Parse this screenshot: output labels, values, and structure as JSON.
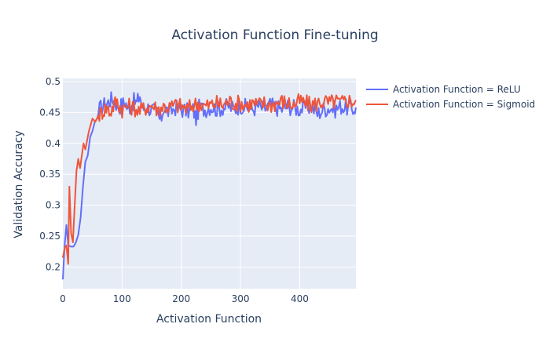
{
  "chart_data": {
    "type": "line",
    "title": "Activation Function Fine-tuning",
    "xlabel": "Activation Function",
    "ylabel": "Validation Accuracy",
    "xlim": [
      0,
      495
    ],
    "ylim": [
      0.165,
      0.505
    ],
    "xticks": [
      0,
      100,
      200,
      300,
      400
    ],
    "yticks": [
      0.2,
      0.25,
      0.3,
      0.35,
      0.4,
      0.45,
      0.5
    ],
    "grid": true,
    "legend_position": "top-right-outside",
    "series": [
      {
        "name": "Activation Function = ReLU",
        "color": "#636efa",
        "points": [
          [
            0,
            0.18
          ],
          [
            3,
            0.235
          ],
          [
            6,
            0.268
          ],
          [
            9,
            0.235
          ],
          [
            14,
            0.233
          ],
          [
            18,
            0.233
          ],
          [
            22,
            0.24
          ],
          [
            26,
            0.252
          ],
          [
            30,
            0.28
          ],
          [
            34,
            0.33
          ],
          [
            38,
            0.37
          ],
          [
            42,
            0.38
          ],
          [
            46,
            0.41
          ],
          [
            50,
            0.42
          ],
          [
            54,
            0.435
          ],
          [
            58,
            0.44
          ],
          [
            62,
            0.455
          ],
          [
            66,
            0.46
          ],
          [
            70,
            0.462
          ],
          [
            75,
            0.465
          ],
          [
            80,
            0.47
          ],
          [
            85,
            0.472
          ],
          [
            90,
            0.465
          ],
          [
            95,
            0.46
          ],
          [
            100,
            0.462
          ],
          [
            105,
            0.468
          ],
          [
            110,
            0.455
          ],
          [
            115,
            0.462
          ],
          [
            120,
            0.468
          ],
          [
            125,
            0.465
          ],
          [
            130,
            0.478
          ],
          [
            135,
            0.455
          ],
          [
            140,
            0.46
          ],
          [
            150,
            0.455
          ],
          [
            160,
            0.448
          ],
          [
            165,
            0.435
          ],
          [
            170,
            0.458
          ],
          [
            180,
            0.45
          ],
          [
            190,
            0.458
          ],
          [
            200,
            0.455
          ],
          [
            210,
            0.452
          ],
          [
            220,
            0.455
          ],
          [
            225,
            0.44
          ],
          [
            230,
            0.458
          ],
          [
            240,
            0.455
          ],
          [
            250,
            0.46
          ],
          [
            260,
            0.455
          ],
          [
            270,
            0.458
          ],
          [
            280,
            0.46
          ],
          [
            290,
            0.455
          ],
          [
            300,
            0.462
          ],
          [
            310,
            0.458
          ],
          [
            320,
            0.455
          ],
          [
            330,
            0.46
          ],
          [
            340,
            0.455
          ],
          [
            350,
            0.462
          ],
          [
            360,
            0.458
          ],
          [
            370,
            0.455
          ],
          [
            380,
            0.46
          ],
          [
            390,
            0.458
          ],
          [
            400,
            0.455
          ],
          [
            410,
            0.458
          ],
          [
            420,
            0.46
          ],
          [
            430,
            0.448
          ],
          [
            440,
            0.455
          ],
          [
            450,
            0.458
          ],
          [
            460,
            0.455
          ],
          [
            470,
            0.46
          ],
          [
            480,
            0.458
          ],
          [
            490,
            0.455
          ],
          [
            495,
            0.458
          ]
        ]
      },
      {
        "name": "Activation Function = Sigmoid",
        "color": "#ef553b",
        "points": [
          [
            0,
            0.215
          ],
          [
            3,
            0.23
          ],
          [
            6,
            0.235
          ],
          [
            9,
            0.205
          ],
          [
            11,
            0.33
          ],
          [
            14,
            0.255
          ],
          [
            17,
            0.24
          ],
          [
            20,
            0.3
          ],
          [
            23,
            0.355
          ],
          [
            26,
            0.375
          ],
          [
            29,
            0.36
          ],
          [
            32,
            0.38
          ],
          [
            35,
            0.4
          ],
          [
            38,
            0.39
          ],
          [
            41,
            0.405
          ],
          [
            44,
            0.42
          ],
          [
            47,
            0.43
          ],
          [
            50,
            0.44
          ],
          [
            55,
            0.435
          ],
          [
            60,
            0.445
          ],
          [
            65,
            0.45
          ],
          [
            70,
            0.455
          ],
          [
            75,
            0.458
          ],
          [
            80,
            0.45
          ],
          [
            85,
            0.46
          ],
          [
            90,
            0.468
          ],
          [
            95,
            0.462
          ],
          [
            100,
            0.455
          ],
          [
            110,
            0.46
          ],
          [
            120,
            0.458
          ],
          [
            130,
            0.452
          ],
          [
            140,
            0.458
          ],
          [
            150,
            0.462
          ],
          [
            160,
            0.455
          ],
          [
            170,
            0.46
          ],
          [
            180,
            0.458
          ],
          [
            190,
            0.462
          ],
          [
            200,
            0.46
          ],
          [
            210,
            0.455
          ],
          [
            220,
            0.462
          ],
          [
            230,
            0.465
          ],
          [
            240,
            0.46
          ],
          [
            250,
            0.462
          ],
          [
            260,
            0.465
          ],
          [
            270,
            0.462
          ],
          [
            280,
            0.468
          ],
          [
            290,
            0.465
          ],
          [
            300,
            0.465
          ],
          [
            310,
            0.462
          ],
          [
            320,
            0.465
          ],
          [
            330,
            0.462
          ],
          [
            340,
            0.465
          ],
          [
            350,
            0.462
          ],
          [
            360,
            0.465
          ],
          [
            370,
            0.468
          ],
          [
            380,
            0.465
          ],
          [
            390,
            0.462
          ],
          [
            400,
            0.468
          ],
          [
            410,
            0.465
          ],
          [
            420,
            0.462
          ],
          [
            430,
            0.465
          ],
          [
            440,
            0.468
          ],
          [
            450,
            0.465
          ],
          [
            460,
            0.468
          ],
          [
            470,
            0.465
          ],
          [
            480,
            0.47
          ],
          [
            490,
            0.468
          ],
          [
            495,
            0.47
          ]
        ]
      }
    ]
  }
}
